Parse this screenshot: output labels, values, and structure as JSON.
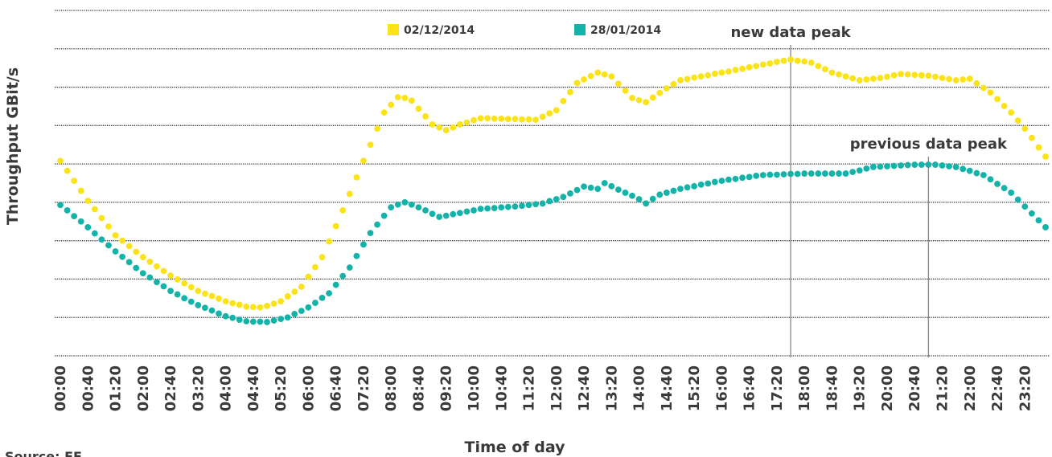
{
  "chart_data": {
    "type": "line",
    "ylabel": "Throughput GBit/s",
    "xlabel": "Time of day",
    "source": "Source: EE",
    "ylim": [
      0,
      9
    ],
    "yticks": [
      0,
      1,
      2,
      3,
      4,
      5,
      6,
      7,
      8,
      9
    ],
    "grid": true,
    "legend": "top",
    "categories": [
      "00:00",
      null,
      null,
      null,
      "00:40",
      null,
      null,
      null,
      "01:20",
      null,
      null,
      null,
      "02:00",
      null,
      null,
      null,
      "02:40",
      null,
      null,
      null,
      "03:20",
      null,
      null,
      null,
      "04:00",
      null,
      null,
      null,
      "04:40",
      null,
      null,
      null,
      "05:20",
      null,
      null,
      null,
      "06:00",
      null,
      null,
      null,
      "06:40",
      null,
      null,
      null,
      "07:20",
      null,
      null,
      null,
      "08:00",
      null,
      null,
      null,
      "08:40",
      null,
      null,
      null,
      "09:20",
      null,
      null,
      null,
      "10:00",
      null,
      null,
      null,
      "10:40",
      null,
      null,
      null,
      "11:20",
      null,
      null,
      null,
      "12:00",
      null,
      null,
      null,
      "12:40",
      null,
      null,
      null,
      "13:20",
      null,
      null,
      null,
      "14:00",
      null,
      null,
      null,
      "14:40",
      null,
      null,
      null,
      "15:20",
      null,
      null,
      null,
      "16:00",
      null,
      null,
      null,
      "16:40",
      null,
      null,
      null,
      "17:20",
      null,
      null,
      null,
      "18:00",
      null,
      null,
      null,
      "18:40",
      null,
      null,
      null,
      "19:20",
      null,
      null,
      null,
      "20:00",
      null,
      null,
      null,
      "20:40",
      null,
      null,
      null,
      "21:20",
      null,
      null,
      null,
      "22:00",
      null,
      null,
      null,
      "22:40",
      null,
      null,
      null,
      "23:20",
      null,
      null,
      null
    ],
    "series": [
      {
        "name": "02/12/2014",
        "color": "#fbe317",
        "values": [
          5.08,
          4.82,
          4.56,
          4.3,
          4.04,
          3.82,
          3.59,
          3.37,
          3.14,
          3.0,
          2.86,
          2.71,
          2.57,
          2.45,
          2.33,
          2.21,
          2.09,
          1.99,
          1.89,
          1.79,
          1.69,
          1.62,
          1.56,
          1.49,
          1.42,
          1.37,
          1.33,
          1.28,
          1.27,
          1.26,
          1.3,
          1.36,
          1.42,
          1.55,
          1.67,
          1.8,
          2.06,
          2.31,
          2.57,
          2.98,
          3.38,
          3.79,
          4.22,
          4.65,
          5.08,
          5.5,
          5.92,
          6.34,
          6.54,
          6.74,
          6.72,
          6.65,
          6.44,
          6.24,
          6.03,
          5.95,
          5.88,
          5.95,
          6.03,
          6.08,
          6.14,
          6.19,
          6.19,
          6.18,
          6.18,
          6.17,
          6.17,
          6.16,
          6.16,
          6.15,
          6.23,
          6.32,
          6.4,
          6.64,
          6.87,
          7.11,
          7.2,
          7.29,
          7.38,
          7.33,
          7.28,
          7.09,
          6.91,
          6.72,
          6.66,
          6.61,
          6.73,
          6.85,
          6.97,
          7.08,
          7.18,
          7.21,
          7.25,
          7.28,
          7.31,
          7.35,
          7.38,
          7.41,
          7.45,
          7.48,
          7.52,
          7.55,
          7.59,
          7.62,
          7.66,
          7.69,
          7.72,
          7.69,
          7.67,
          7.64,
          7.55,
          7.47,
          7.38,
          7.33,
          7.28,
          7.23,
          7.18,
          7.2,
          7.22,
          7.24,
          7.27,
          7.31,
          7.34,
          7.33,
          7.32,
          7.31,
          7.3,
          7.27,
          7.24,
          7.21,
          7.18,
          7.2,
          7.22,
          7.1,
          6.98,
          6.86,
          6.69,
          6.51,
          6.34,
          6.13,
          5.92,
          5.68,
          5.43,
          5.19
        ]
      },
      {
        "name": "28/01/2014",
        "color": "#14b3a9",
        "values": [
          3.93,
          3.79,
          3.64,
          3.5,
          3.35,
          3.19,
          3.03,
          2.88,
          2.72,
          2.58,
          2.44,
          2.29,
          2.15,
          2.04,
          1.92,
          1.81,
          1.69,
          1.6,
          1.5,
          1.41,
          1.32,
          1.25,
          1.18,
          1.1,
          1.03,
          0.99,
          0.94,
          0.9,
          0.89,
          0.89,
          0.88,
          0.92,
          0.96,
          1.0,
          1.09,
          1.17,
          1.26,
          1.38,
          1.51,
          1.63,
          1.85,
          2.08,
          2.3,
          2.6,
          2.9,
          3.2,
          3.42,
          3.65,
          3.87,
          3.94,
          4.0,
          3.94,
          3.87,
          3.79,
          3.7,
          3.62,
          3.65,
          3.69,
          3.72,
          3.76,
          3.79,
          3.83,
          3.84,
          3.85,
          3.87,
          3.88,
          3.89,
          3.91,
          3.93,
          3.95,
          3.97,
          4.03,
          4.08,
          4.14,
          4.23,
          4.32,
          4.41,
          4.38,
          4.35,
          4.5,
          4.42,
          4.33,
          4.25,
          4.17,
          4.08,
          3.97,
          4.09,
          4.2,
          4.25,
          4.3,
          4.35,
          4.39,
          4.42,
          4.46,
          4.49,
          4.53,
          4.56,
          4.59,
          4.61,
          4.64,
          4.66,
          4.69,
          4.71,
          4.72,
          4.72,
          4.73,
          4.74,
          4.74,
          4.75,
          4.75,
          4.75,
          4.75,
          4.75,
          4.75,
          4.75,
          4.79,
          4.83,
          4.88,
          4.92,
          4.93,
          4.94,
          4.95,
          4.96,
          4.97,
          4.98,
          4.98,
          4.98,
          4.98,
          4.96,
          4.94,
          4.92,
          4.87,
          4.82,
          4.76,
          4.71,
          4.6,
          4.48,
          4.37,
          4.25,
          4.07,
          3.89,
          3.71,
          3.53,
          3.35
        ]
      }
    ],
    "annotations": [
      {
        "text": "new data peak",
        "at": "17:40"
      },
      {
        "text": "previous data peak",
        "at": "21:00"
      }
    ]
  }
}
